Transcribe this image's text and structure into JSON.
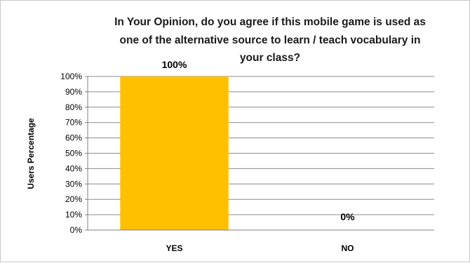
{
  "chart_data": {
    "type": "bar",
    "title_lines": [
      "In Your Opinion, do you agree if this mobile game is used as",
      "one of the alternative source to learn / teach vocabulary in",
      "your class?"
    ],
    "ylabel": "Users Percentage",
    "xlabel": "",
    "categories": [
      "YES",
      "NO"
    ],
    "values": [
      100,
      0
    ],
    "data_labels": [
      "100%",
      "0%"
    ],
    "y_ticks": [
      "0%",
      "10%",
      "20%",
      "30%",
      "40%",
      "50%",
      "60%",
      "70%",
      "80%",
      "90%",
      "100%"
    ],
    "ylim": [
      0,
      100
    ],
    "grid": true,
    "legend": "none",
    "bar_color": "#FFC000"
  }
}
